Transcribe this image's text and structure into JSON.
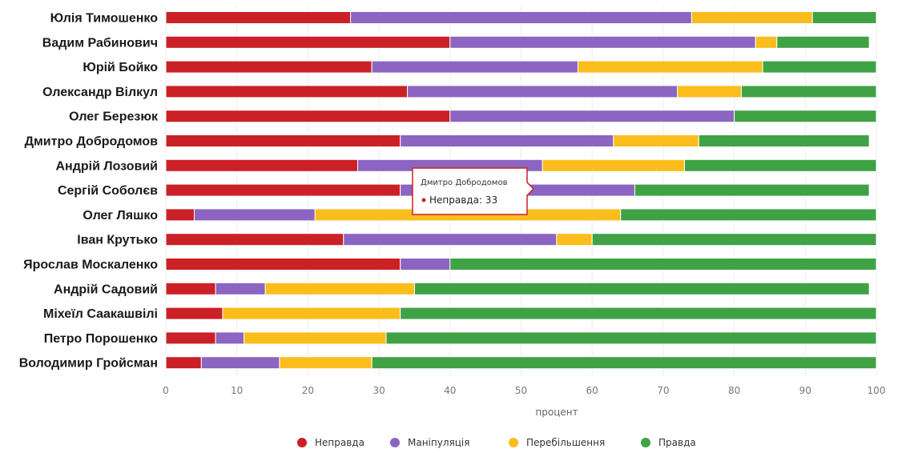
{
  "chart_data": {
    "type": "bar",
    "orientation": "horizontal",
    "stacked": true,
    "categories": [
      "Юлія Тимошенко",
      "Вадим Рабинович",
      "Юрій Бойко",
      "Олександр Вілкул",
      "Олег Березюк",
      "Дмитро Добродомов",
      "Андрій Лозовий",
      "Сергій Соболєв",
      "Олег Ляшко",
      "Іван Крутько",
      "Ярослав Москаленко",
      "Андрій Садовий",
      "Міхеїл Саакашвілі",
      "Петро Порошенко",
      "Володимир Гройсман"
    ],
    "series": [
      {
        "name": "Неправда",
        "color": "#cc2027",
        "values": [
          26,
          40,
          29,
          34,
          40,
          33,
          27,
          33,
          4,
          25,
          33,
          7,
          8,
          7,
          5
        ]
      },
      {
        "name": "Маніпуляція",
        "color": "#8b65c1",
        "values": [
          48,
          43,
          29,
          38,
          40,
          30,
          26,
          33,
          17,
          30,
          7,
          7,
          0,
          4,
          11
        ]
      },
      {
        "name": "Перебільшення",
        "color": "#fbbd1c",
        "values": [
          17,
          3,
          26,
          9,
          0,
          12,
          20,
          0,
          43,
          5,
          0,
          21,
          25,
          20,
          13
        ]
      },
      {
        "name": "Правда",
        "color": "#3fa245",
        "values": [
          9,
          13,
          16,
          19,
          20,
          24,
          27,
          33,
          36,
          40,
          60,
          64,
          67,
          69,
          71
        ]
      }
    ],
    "xlabel": "процент",
    "ylabel": "",
    "xlim": [
      0,
      100
    ],
    "xticks": [
      0,
      10,
      20,
      30,
      40,
      50,
      60,
      70,
      80,
      90,
      100
    ],
    "grid": true,
    "legend_position": "bottom",
    "tooltip": {
      "category": "Дмитро Добродомов",
      "series": "Неправда",
      "value": 33,
      "text": "Неправда: 33"
    }
  }
}
